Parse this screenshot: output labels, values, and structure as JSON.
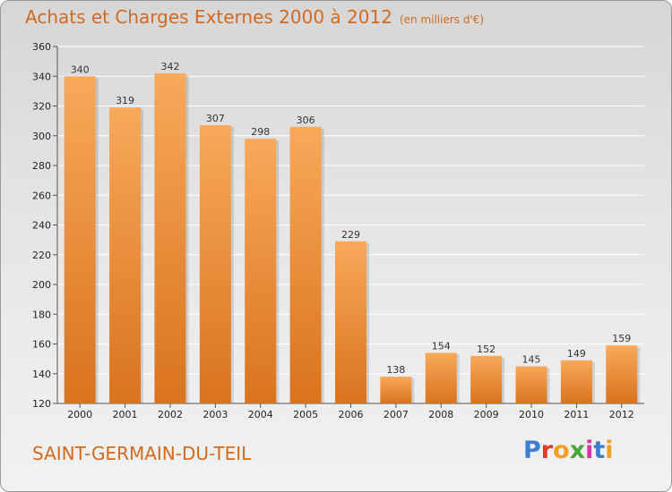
{
  "header": {
    "title": "Achats et Charges Externes 2000 à 2012",
    "subtitle": "(en milliers d'€)"
  },
  "footer": {
    "location": "SAINT-GERMAIN-DU-TEIL",
    "brand": "Proxiti",
    "brand_letter_colors": [
      "#3a7fd0",
      "#e23a2a",
      "#f0a020",
      "#4aa83c",
      "#d23aa0",
      "#3a7fd0",
      "#f0a020"
    ]
  },
  "colors": {
    "bar": "#f0923a",
    "bar_light": "#f8a95a",
    "bar_dark": "#d9731e",
    "accent": "#d2691e",
    "grid": "#ffffff",
    "axis": "#555555"
  },
  "chart_data": {
    "type": "bar",
    "title": "Achats et Charges Externes 2000 à 2012",
    "subtitle": "(en milliers d'€)",
    "categories": [
      "2000",
      "2001",
      "2002",
      "2003",
      "2004",
      "2005",
      "2006",
      "2007",
      "2008",
      "2009",
      "2010",
      "2011",
      "2012"
    ],
    "values": [
      340,
      319,
      342,
      307,
      298,
      306,
      229,
      138,
      154,
      152,
      145,
      149,
      159
    ],
    "ylim": [
      120,
      360
    ],
    "yticks": [
      120,
      140,
      160,
      180,
      200,
      220,
      240,
      260,
      280,
      300,
      320,
      340,
      360
    ],
    "grid": true,
    "data_labels": true,
    "xlabel": "",
    "ylabel": ""
  }
}
